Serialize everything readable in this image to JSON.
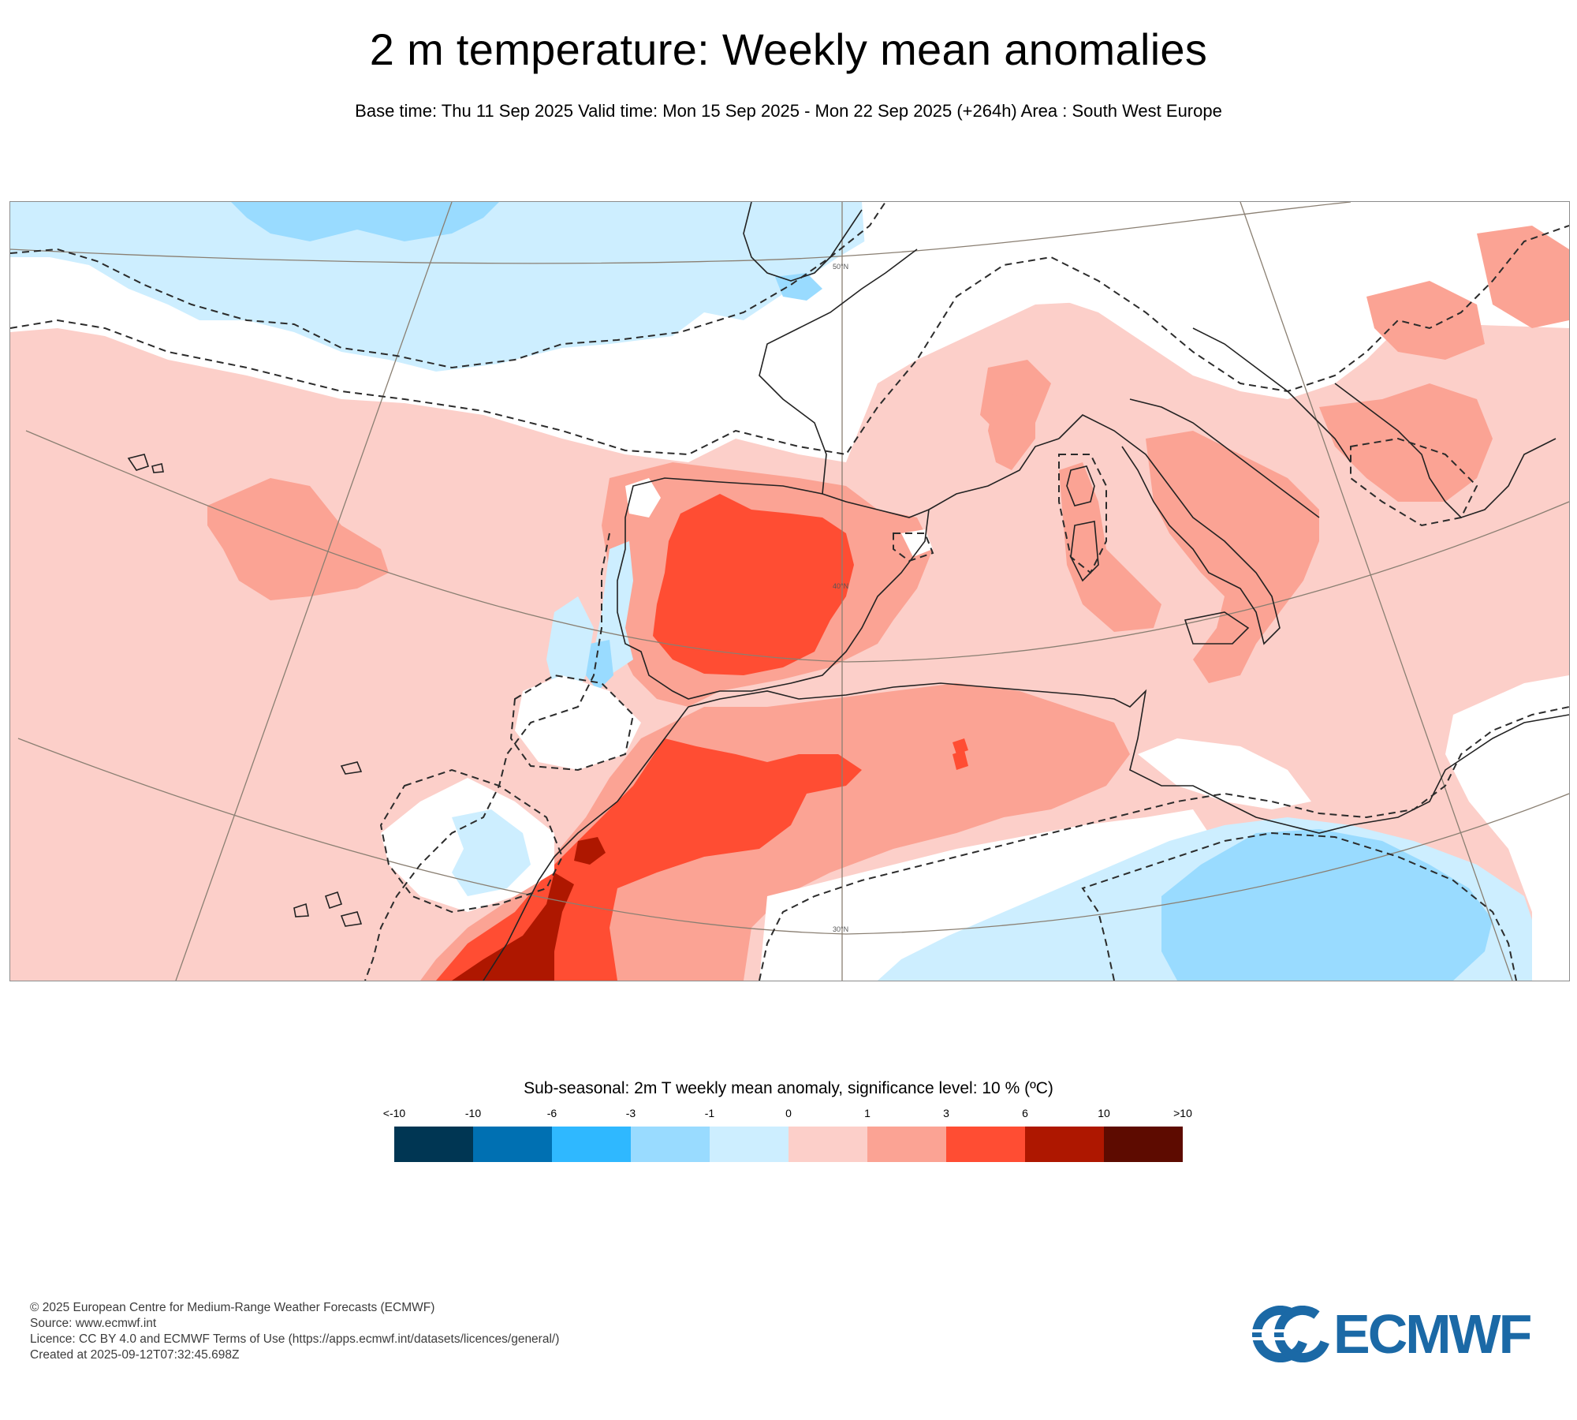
{
  "title": "2 m temperature: Weekly mean anomalies",
  "subtitle": "Base time: Thu 11 Sep 2025 Valid time: Mon 15 Sep 2025 - Mon 22 Sep 2025 (+264h) Area : South West Europe",
  "map": {
    "graticule_labels": [
      "50°N",
      "40°N",
      "30°N"
    ]
  },
  "legend": {
    "title": "Sub-seasonal: 2m T weekly mean anomaly, significance level: 10 % (ºC)",
    "tick_labels": [
      "<-10",
      "-10",
      "-6",
      "-3",
      "-1",
      "0",
      "1",
      "3",
      "6",
      "10",
      ">10"
    ],
    "colors": [
      "#003653",
      "#0070b2",
      "#2fb8ff",
      "#99dbff",
      "#cdeeff",
      "#fccfc9",
      "#fba394",
      "#ff4d33",
      "#ae1700",
      "#5d0b00"
    ]
  },
  "footer": {
    "copyright": "© 2025 European Centre for Medium-Range Weather Forecasts (ECMWF)",
    "source": "Source: www.ecmwf.int",
    "licence": "Licence: CC BY 4.0 and ECMWF Terms of Use (https://apps.ecmwf.int/datasets/licences/general/)",
    "created": "Created at 2025-09-12T07:32:45.698Z"
  },
  "logo": {
    "text": "ECMWF",
    "color": "#1b69a6"
  }
}
